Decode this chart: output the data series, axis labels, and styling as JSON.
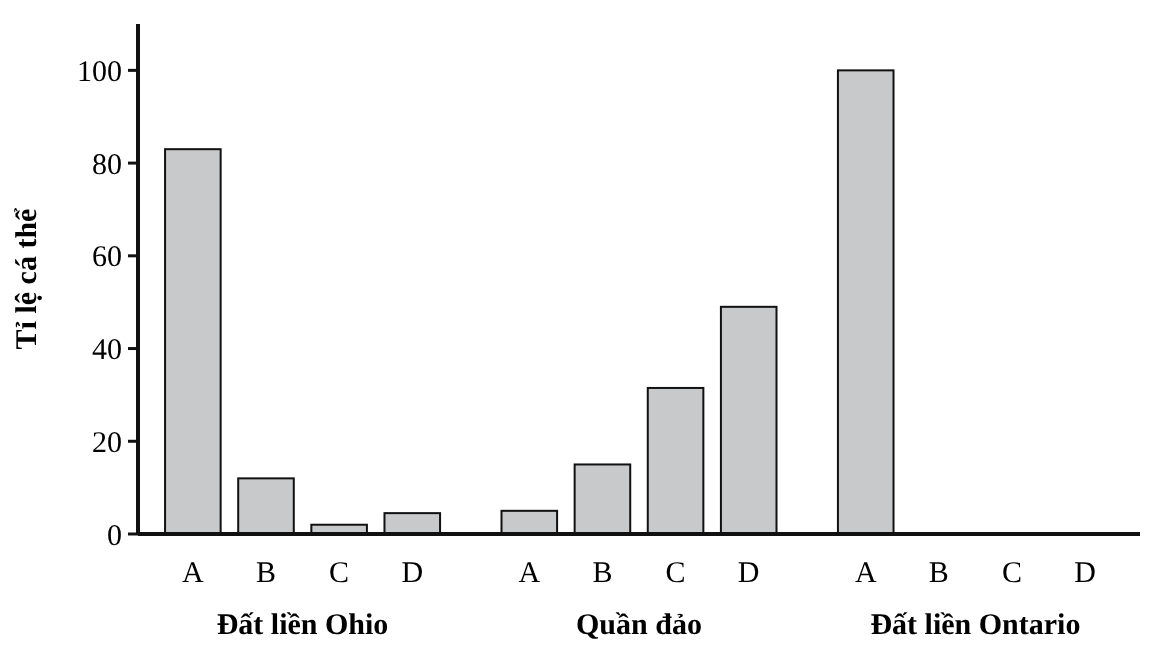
{
  "chart_data": {
    "type": "bar",
    "ylabel": "Tỉ lệ cá thể",
    "categories": [
      "A",
      "B",
      "C",
      "D",
      "A",
      "B",
      "C",
      "D",
      "A",
      "B",
      "C",
      "D"
    ],
    "values": [
      83,
      12,
      2,
      4.5,
      5,
      15,
      31.5,
      49,
      100,
      0,
      0,
      0
    ],
    "color": "#c8c9cb",
    "ylim": [
      0,
      110
    ],
    "yticks": [
      0,
      20,
      40,
      60,
      80,
      100
    ],
    "grid": false,
    "annotations": [
      "Đất liền Ohio",
      "Quần đảo",
      "Đất liền Ontario"
    ]
  }
}
